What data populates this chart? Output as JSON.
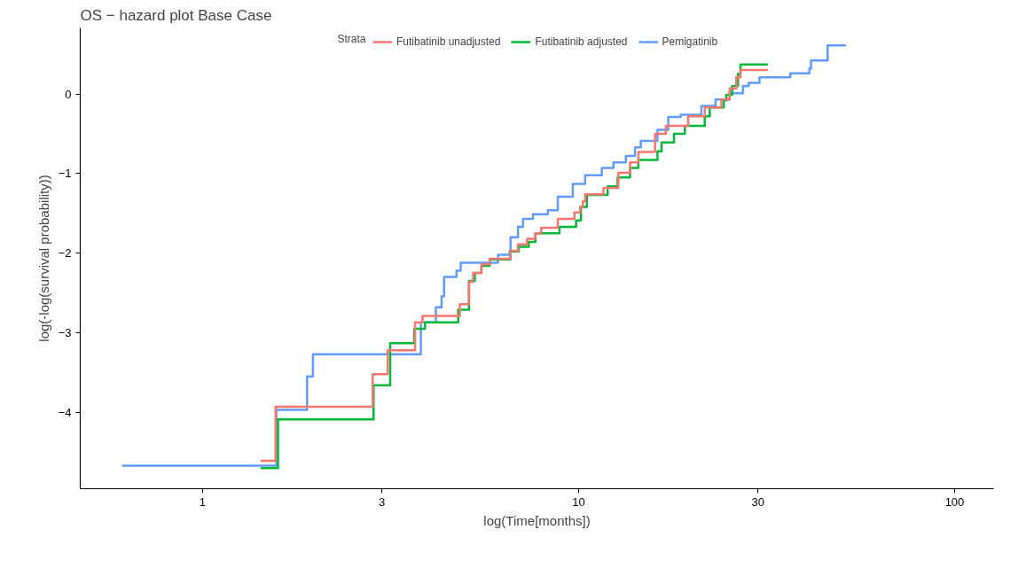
{
  "chart_data": {
    "type": "step",
    "title": "OS − hazard plot Base Case",
    "xlabel": "log(Time[months])",
    "ylabel": "log(-log(survival probability))",
    "legend_title": "Strata",
    "legend": "top",
    "grid": false,
    "log": "x",
    "xlim": [
      0.473,
      127
    ],
    "xticks": [
      1,
      3,
      10,
      30,
      100
    ],
    "ylim": [
      -4.96,
      0.83
    ],
    "yticks": [
      -4,
      -3,
      -2,
      -1,
      0
    ],
    "series": [
      {
        "name": "Futibatinib unadjusted",
        "color": "#f8766d",
        "x": [
          1.427,
          1.564,
          2.835,
          3.107,
          3.674,
          3.846,
          4.834,
          5.112,
          5.244,
          5.517,
          5.804,
          6.592,
          6.901,
          7.297,
          7.677,
          7.955,
          8.807,
          9.75,
          10.1,
          10.26,
          10.41,
          11.65,
          12.76,
          13.71,
          14.42,
          15.97,
          17.06,
          19.56,
          21.65,
          23.97,
          25.22,
          26.27,
          26.95,
          31.87
        ],
        "values": [
          -4.61,
          -3.93,
          -3.52,
          -3.22,
          -2.87,
          -2.79,
          -2.64,
          -2.36,
          -2.25,
          -2.14,
          -2.07,
          -1.97,
          -1.89,
          -1.82,
          -1.75,
          -1.68,
          -1.57,
          -1.49,
          -1.42,
          -1.35,
          -1.26,
          -1.18,
          -0.99,
          -0.86,
          -0.73,
          -0.5,
          -0.4,
          -0.28,
          -0.17,
          -0.07,
          0.07,
          0.21,
          0.3,
          0.3
        ]
      },
      {
        "name": "Futibatinib adjusted",
        "color": "#00ba38",
        "x": [
          1.427,
          1.588,
          2.85,
          3.155,
          3.655,
          3.905,
          4.786,
          5.112,
          5.298,
          5.517,
          5.804,
          6.592,
          6.936,
          7.371,
          7.677,
          8.897,
          9.849,
          10.15,
          10.52,
          11.95,
          12.7,
          13.71,
          14.42,
          16.21,
          16.63,
          17.94,
          19.17,
          21.65,
          22.33,
          24.33,
          24.71,
          25.61,
          26.53,
          26.95,
          31.87
        ],
        "values": [
          -4.7,
          -4.09,
          -3.66,
          -3.13,
          -2.95,
          -2.87,
          -2.71,
          -2.35,
          -2.25,
          -2.16,
          -2.08,
          -1.98,
          -1.92,
          -1.86,
          -1.75,
          -1.67,
          -1.59,
          -1.42,
          -1.27,
          -1.16,
          -1.05,
          -0.93,
          -0.83,
          -0.72,
          -0.61,
          -0.5,
          -0.4,
          -0.28,
          -0.17,
          -0.08,
          -0.01,
          0.1,
          0.25,
          0.37,
          0.37
        ]
      },
      {
        "name": "Pemigatinib",
        "color": "#619cff",
        "x": [
          0.611,
          1.572,
          1.897,
          1.966,
          3.807,
          4.173,
          4.323,
          4.389,
          4.737,
          4.859,
          6.107,
          6.559,
          6.592,
          6.901,
          7.114,
          7.561,
          8.286,
          8.807,
          9.65,
          10.41,
          11.53,
          12.38,
          13.36,
          14.13,
          14.64,
          16.21,
          17.32,
          18.68,
          21.21,
          23.13,
          25.22,
          27.36,
          28.35,
          30.29,
          36.56,
          41.09,
          41.51,
          45.96,
          51.39
        ],
        "values": [
          -4.67,
          -3.97,
          -3.55,
          -3.27,
          -2.87,
          -2.68,
          -2.54,
          -2.3,
          -2.22,
          -2.12,
          -2.02,
          -1.97,
          -1.8,
          -1.67,
          -1.57,
          -1.51,
          -1.46,
          -1.29,
          -1.13,
          -1.02,
          -0.93,
          -0.86,
          -0.78,
          -0.67,
          -0.59,
          -0.45,
          -0.29,
          -0.26,
          -0.15,
          -0.07,
          0.01,
          0.1,
          0.14,
          0.21,
          0.26,
          0.32,
          0.42,
          0.61,
          0.61
        ]
      }
    ]
  }
}
